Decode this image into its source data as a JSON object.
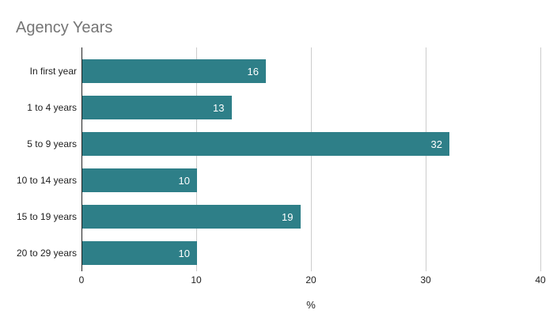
{
  "chart_data": {
    "type": "bar",
    "orientation": "horizontal",
    "title": "Agency Years",
    "categories": [
      "In first year",
      "1 to 4 years",
      "5 to 9 years",
      "10 to 14 years",
      "15 to 19 years",
      "20 to 29 years"
    ],
    "values": [
      16,
      13,
      32,
      10,
      19,
      10
    ],
    "xlabel": "%",
    "ylabel": "",
    "xlim": [
      0,
      40
    ],
    "x_ticks": [
      0,
      10,
      20,
      30,
      40
    ],
    "grid": true,
    "legend": false,
    "value_labels": "inside-end"
  },
  "colors": {
    "bar": "#2e7f88",
    "title_text": "#757575",
    "gridline": "#cccccc",
    "axis_line": "#212121",
    "bar_value_text": "#ffffff",
    "tick_text": "#212121",
    "background": "#ffffff"
  }
}
